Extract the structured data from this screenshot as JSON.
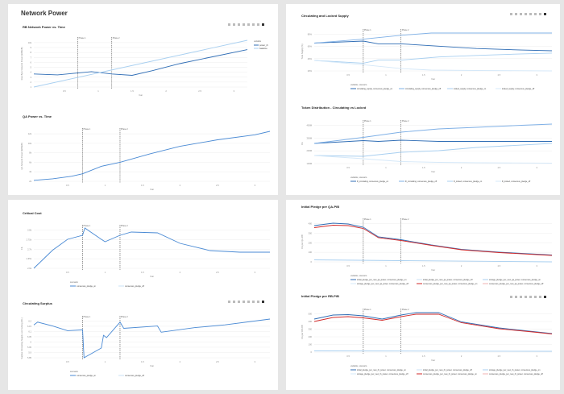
{
  "page_title": "Network Power",
  "toolbar_icons": [
    "camera-icon",
    "zoom-icon",
    "pan-icon",
    "zoom-in-icon",
    "zoom-out-icon",
    "autoscale-icon",
    "reset-icon",
    "plotly-logo-icon"
  ],
  "chart_data": [
    {
      "id": "rb_power",
      "type": "line",
      "title": "RB Network Power vs. Time",
      "xlabel": "Year",
      "ylabel": "Raw Byte Network Power (EiB/EiB)",
      "xlim": [
        0.05,
        3.2
      ],
      "x_ticks": [
        "0.5",
        "1",
        "1.5",
        "2",
        "2.5",
        "3"
      ],
      "y_ticks": [
        "1",
        "2",
        "3",
        "4",
        "5",
        "6",
        "7",
        "8",
        "9",
        "10k"
      ],
      "phases": [
        {
          "label": "Phase 1",
          "x": 0.7
        },
        {
          "label": "Phase 2",
          "x": 1.2
        }
      ],
      "legend_title": "variable",
      "series": [
        {
          "name": "power_rb",
          "color": "#2f6db5",
          "x": [
            0.05,
            0.4,
            0.7,
            0.9,
            1.2,
            1.5,
            1.8,
            2.2,
            2.6,
            3.2
          ],
          "y": [
            0.28,
            0.26,
            0.3,
            0.33,
            0.28,
            0.25,
            0.35,
            0.5,
            0.62,
            0.8
          ]
        },
        {
          "name": "baseline",
          "color": "#a8cff0",
          "x": [
            0.05,
            3.2
          ],
          "y": [
            0.0,
            1.0
          ]
        }
      ]
    },
    {
      "id": "qa_power",
      "type": "line",
      "title": "QA Power vs. Time",
      "xlabel": "Year",
      "ylabel": "QA Network Power (EiB/EiB)",
      "x_ticks": [
        "0.5",
        "1",
        "1.5",
        "2",
        "2.5",
        "3"
      ],
      "y_ticks": [
        "2k",
        "4k",
        "6k",
        "8k",
        "10k",
        "12k"
      ],
      "phases": [
        {
          "label": "Phase 1",
          "x": 0.7
        },
        {
          "label": "Phase 2",
          "x": 1.2
        }
      ],
      "series": [
        {
          "name": "qa_power",
          "color": "#4a8ad4",
          "x": [
            0.05,
            0.3,
            0.55,
            0.7,
            0.95,
            1.2,
            1.6,
            2.0,
            2.5,
            3.0,
            3.2
          ],
          "y": [
            0.02,
            0.05,
            0.1,
            0.15,
            0.3,
            0.38,
            0.55,
            0.7,
            0.83,
            0.93,
            1.0
          ]
        }
      ]
    },
    {
      "id": "critical_cost",
      "type": "line",
      "title": "Critical Cost",
      "xlabel": "Year",
      "ylabel": "FIL",
      "x_ticks": [
        "0.5",
        "1",
        "1.5",
        "2",
        "2.5",
        "3"
      ],
      "y_ticks": [
        "2.6k",
        "2.65k",
        "2.7k",
        "2.75k",
        "2.8k"
      ],
      "phases": [
        {
          "label": "Phase 1",
          "x": 0.7
        },
        {
          "label": "Phase 2",
          "x": 1.2
        }
      ],
      "legend_title": "scenario",
      "series": [
        {
          "name": "consensus_pledge_on",
          "color": "#4a8ad4",
          "x": [
            0.05,
            0.3,
            0.5,
            0.7,
            0.73,
            0.95,
            1.0,
            1.2,
            1.35,
            1.7,
            2.0,
            2.4,
            2.8,
            3.2
          ],
          "y": [
            0.0,
            0.45,
            0.72,
            0.82,
            1.0,
            0.72,
            0.66,
            0.82,
            0.9,
            0.88,
            0.62,
            0.44,
            0.4,
            0.4
          ]
        },
        {
          "name": "consensus_pledge_off",
          "color": "#c8e0f6",
          "x": [],
          "y": []
        }
      ]
    },
    {
      "id": "circ_surplus",
      "type": "line",
      "title": "Circulating Surplus",
      "xlabel": "Year",
      "ylabel": "Surplus Circulating Supply over locking (FIL)",
      "x_ticks": [
        "0.5",
        "1",
        "1.5",
        "2",
        "2.5",
        "3"
      ],
      "y_ticks": [
        "5.85",
        "5.9",
        "5.95",
        "6",
        "6.05",
        "6.1",
        "6.15",
        "6.2"
      ],
      "phases": [
        {
          "label": "Phase 1",
          "x": 0.7
        },
        {
          "label": "Phase 2",
          "x": 1.2
        }
      ],
      "legend_title": "scenario",
      "series": [
        {
          "name": "consensus_pledge_on",
          "color": "#4a8ad4",
          "x": [
            0.05,
            0.1,
            0.3,
            0.5,
            0.7,
            0.72,
            0.95,
            0.98,
            1.02,
            1.2,
            1.25,
            1.7,
            1.75,
            2.2,
            2.6,
            3.2
          ],
          "y": [
            0.85,
            0.92,
            0.82,
            0.7,
            0.72,
            0.0,
            0.25,
            0.58,
            0.52,
            0.92,
            0.76,
            0.82,
            0.66,
            0.78,
            0.85,
            1.0
          ]
        },
        {
          "name": "consensus_pledge_off",
          "color": "#c8e0f6",
          "x": [],
          "y": []
        }
      ]
    },
    {
      "id": "circ_locked",
      "type": "line",
      "title": "Circulating and Locked Supply",
      "xlabel": "Year",
      "ylabel": "Total Supply (%)",
      "x_ticks": [
        "0.5",
        "1",
        "1.5",
        "2",
        "2.5",
        "3"
      ],
      "y_ticks": [
        "20%",
        "40%",
        "60%",
        "80%"
      ],
      "phases": [
        {
          "label": "Phase 1",
          "x": 0.7
        },
        {
          "label": "Phase 2",
          "x": 1.2
        }
      ],
      "legend_title": "variable, scenario",
      "series": [
        {
          "name": "circulating_supply, consensus_pledge_on",
          "color": "#2f6db5",
          "x": [
            0.05,
            0.7,
            0.9,
            1.2,
            1.7,
            2.2,
            2.8,
            3.2
          ],
          "y": [
            0.72,
            0.77,
            0.7,
            0.7,
            0.64,
            0.58,
            0.54,
            0.52
          ]
        },
        {
          "name": "circulating_supply, consensus_pledge_off",
          "color": "#7fb0e6",
          "x": [
            0.05,
            0.7,
            1.2,
            1.6,
            2.2,
            3.2
          ],
          "y": [
            0.72,
            0.82,
            0.92,
            0.98,
            0.98,
            0.98
          ]
        },
        {
          "name": "locked_supply, consensus_pledge_on",
          "color": "#a8cff0",
          "x": [
            0.05,
            0.7,
            0.9,
            1.2,
            1.7,
            2.2,
            2.8,
            3.2
          ],
          "y": [
            0.27,
            0.2,
            0.28,
            0.28,
            0.36,
            0.4,
            0.44,
            0.46
          ]
        },
        {
          "name": "locked_supply, consensus_pledge_off",
          "color": "#d5e8f8",
          "x": [
            0.05,
            0.7,
            1.2,
            1.6,
            2.2,
            3.2
          ],
          "y": [
            0.27,
            0.16,
            0.06,
            0.02,
            0.01,
            0.0
          ]
        }
      ]
    },
    {
      "id": "token_dist",
      "type": "line",
      "title": "Token Distribution - Circulating vs Locked",
      "xlabel": "Year",
      "ylabel": "FIL",
      "x_ticks": [
        "0.5",
        "1",
        "1.5",
        "2",
        "2.5",
        "3"
      ],
      "y_ticks": [
        "100M",
        "200M",
        "300M",
        "400M"
      ],
      "phases": [
        {
          "label": "Phase 1",
          "x": 0.7
        },
        {
          "label": "Phase 2",
          "x": 1.2
        }
      ],
      "legend_title": "variable, scenario",
      "series": [
        {
          "name": "fil_circulating, consensus_pledge_on",
          "color": "#2f6db5",
          "x": [
            0.05,
            0.7,
            0.9,
            1.2,
            1.7,
            2.2,
            3.2
          ],
          "y": [
            0.5,
            0.57,
            0.55,
            0.58,
            0.55,
            0.55,
            0.55
          ]
        },
        {
          "name": "fil_circulating, consensus_pledge_off",
          "color": "#7fb0e6",
          "x": [
            0.05,
            0.7,
            1.2,
            1.7,
            2.2,
            2.8,
            3.2
          ],
          "y": [
            0.5,
            0.65,
            0.78,
            0.86,
            0.9,
            0.95,
            0.98
          ]
        },
        {
          "name": "fil_locked, consensus_pledge_on",
          "color": "#a8cff0",
          "x": [
            0.05,
            0.7,
            1.2,
            1.7,
            2.2,
            3.2
          ],
          "y": [
            0.2,
            0.18,
            0.28,
            0.32,
            0.4,
            0.5
          ]
        },
        {
          "name": "fil_locked, consensus_pledge_off",
          "color": "#d5e8f8",
          "x": [
            0.05,
            0.7,
            1.2,
            1.7,
            2.2,
            3.2
          ],
          "y": [
            0.2,
            0.12,
            0.05,
            0.03,
            0.02,
            0.01
          ]
        }
      ]
    },
    {
      "id": "pledge_qap",
      "type": "line",
      "title": "Initial Pledge per QA-PiB",
      "xlabel": "Year",
      "ylabel": "FIL per QA-PiB",
      "x_ticks": [
        "0.5",
        "1",
        "1.5",
        "2",
        "2.5",
        "3"
      ],
      "y_ticks": [
        "0",
        "100",
        "200",
        "300",
        "400"
      ],
      "phases": [
        {
          "label": "Phase 1",
          "x": 0.7
        },
        {
          "label": "Phase 2",
          "x": 1.2
        }
      ],
      "legend_title": "variable, scenario",
      "series": [
        {
          "name": "initial_pledge_per_new_qa_power, consensus_pledge_on",
          "color": "#2f6db5",
          "x": [
            0.05,
            0.3,
            0.5,
            0.7,
            0.9,
            1.2,
            1.6,
            2.0,
            2.5,
            3.0,
            3.2
          ],
          "y": [
            0.9,
            0.96,
            0.94,
            0.86,
            0.62,
            0.55,
            0.42,
            0.31,
            0.24,
            0.19,
            0.17
          ]
        },
        {
          "name": "initial_pledge_per_new_qa_power, consensus_pledge_off",
          "color": "#c8e0f6",
          "x": [],
          "y": []
        },
        {
          "name": "storage_pledge_per_new_qa_power, consensus_pledge_on",
          "color": "#a8cff0",
          "x": [
            0.05,
            1.2,
            3.2
          ],
          "y": [
            0.05,
            0.03,
            0.0
          ]
        },
        {
          "name": "storage_pledge_per_new_qa_power, consensus_pledge_off",
          "color": "#d5e8f8",
          "x": [],
          "y": []
        },
        {
          "name": "consensus_pledge_per_new_qa_power, consensus_pledge_on",
          "color": "#d22a2a",
          "x": [
            0.05,
            0.3,
            0.5,
            0.7,
            0.9,
            1.2,
            1.6,
            2.0,
            2.5,
            3.0,
            3.2
          ],
          "y": [
            0.85,
            0.91,
            0.9,
            0.83,
            0.6,
            0.53,
            0.41,
            0.3,
            0.23,
            0.18,
            0.16
          ]
        },
        {
          "name": "consensus_pledge_per_new_qa_power, consensus_pledge_off",
          "color": "#f2b0b0",
          "x": [],
          "y": []
        }
      ]
    },
    {
      "id": "pledge_rbp",
      "type": "line",
      "title": "Initial Pledge per RB-PiB",
      "xlabel": "Year",
      "ylabel": "FIL per RB-PiB",
      "x_ticks": [
        "0.5",
        "1",
        "1.5",
        "2",
        "2.5",
        "3"
      ],
      "y_ticks": [
        "0",
        "100",
        "200",
        "300",
        "400",
        "500"
      ],
      "phases": [
        {
          "label": "Phase 1",
          "x": 0.7
        },
        {
          "label": "Phase 2",
          "x": 1.2
        }
      ],
      "legend_title": "variable, scenario",
      "series": [
        {
          "name": "initial_pledge_per_new_rb_power, consensus_pledge_on",
          "color": "#2f6db5",
          "x": [
            0.05,
            0.3,
            0.5,
            0.7,
            0.95,
            1.2,
            1.4,
            1.7,
            2.0,
            2.5,
            3.0,
            3.2
          ],
          "y": [
            0.82,
            0.92,
            0.93,
            0.9,
            0.82,
            0.92,
            0.98,
            0.98,
            0.75,
            0.6,
            0.5,
            0.46
          ]
        },
        {
          "name": "initial_pledge_per_new_rb_power, consensus_pledge_off",
          "color": "#c8e0f6",
          "x": [],
          "y": []
        },
        {
          "name": "storage_pledge_per_new_rb_power, consensus_pledge_on",
          "color": "#a8cff0",
          "x": [
            0.05,
            3.2
          ],
          "y": [
            0.03,
            0.02
          ]
        },
        {
          "name": "storage_pledge_per_new_rb_power, consensus_pledge_off",
          "color": "#d5e8f8",
          "x": [],
          "y": []
        },
        {
          "name": "consensus_pledge_per_new_rb_power, consensus_pledge_on",
          "color": "#d22a2a",
          "x": [
            0.05,
            0.3,
            0.5,
            0.7,
            0.95,
            1.2,
            1.4,
            1.7,
            2.0,
            2.5,
            3.0,
            3.2
          ],
          "y": [
            0.76,
            0.86,
            0.88,
            0.85,
            0.79,
            0.88,
            0.94,
            0.94,
            0.73,
            0.58,
            0.49,
            0.45
          ]
        },
        {
          "name": "consensus_pledge_per_new_rb_power, consensus_pledge_off",
          "color": "#f2b0b0",
          "x": [],
          "y": []
        }
      ]
    }
  ]
}
